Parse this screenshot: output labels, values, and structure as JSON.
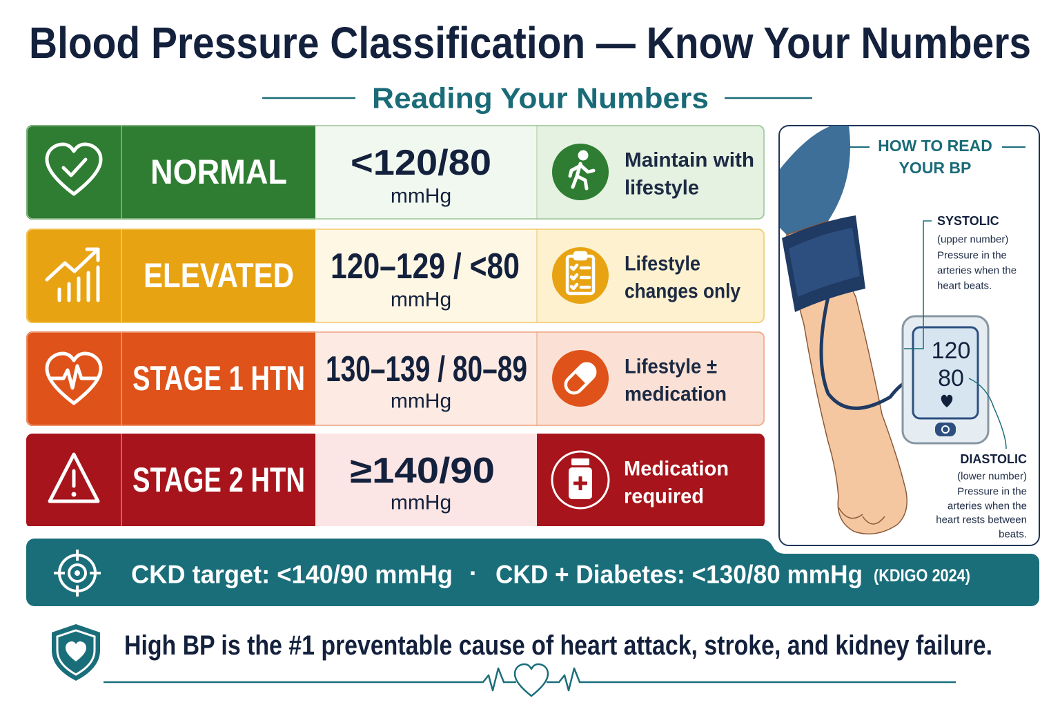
{
  "header": {
    "title": "Blood Pressure Classification — Know Your Numbers",
    "subtitle": "Reading Your Numbers"
  },
  "rows": [
    {
      "category": "NORMAL",
      "reading": "<120/80",
      "unit": "mmHg",
      "action": [
        "Maintain with",
        "lifestyle"
      ]
    },
    {
      "category": "ELEVATED",
      "reading": "120–129 / <80",
      "unit": "mmHg",
      "action": [
        "Lifestyle",
        "changes only"
      ]
    },
    {
      "category": "STAGE 1 HTN",
      "reading": "130–139 / 80–89",
      "unit": "mmHg",
      "action": [
        "Lifestyle ±",
        "medication"
      ]
    },
    {
      "category": "STAGE 2 HTN",
      "reading": "≥140/90",
      "unit": "mmHg",
      "action": [
        "Medication",
        "required"
      ]
    }
  ],
  "panel": {
    "title": [
      "HOW TO READ",
      "YOUR BP"
    ],
    "monitor": [
      "120",
      "80"
    ],
    "systolic": {
      "label": "SYSTOLIC",
      "note": "(upper number)",
      "description": [
        "Pressure in the",
        "arteries when the",
        "heart beats."
      ]
    },
    "diastolic": {
      "label": "DIASTOLIC",
      "note": "(lower number)",
      "description": [
        "Pressure in the",
        "arteries when the",
        "heart rests between",
        "beats."
      ]
    }
  },
  "banner": {
    "ckd_target": "CKD target: <140/90 mmHg",
    "separator": "·",
    "ckd_diabetes": "CKD + Diabetes: <130/80 mmHg",
    "source": "(KDIGO 2024)"
  },
  "footer": {
    "message": "High BP is the #1 preventable cause of heart attack, stroke, and kidney failure."
  }
}
